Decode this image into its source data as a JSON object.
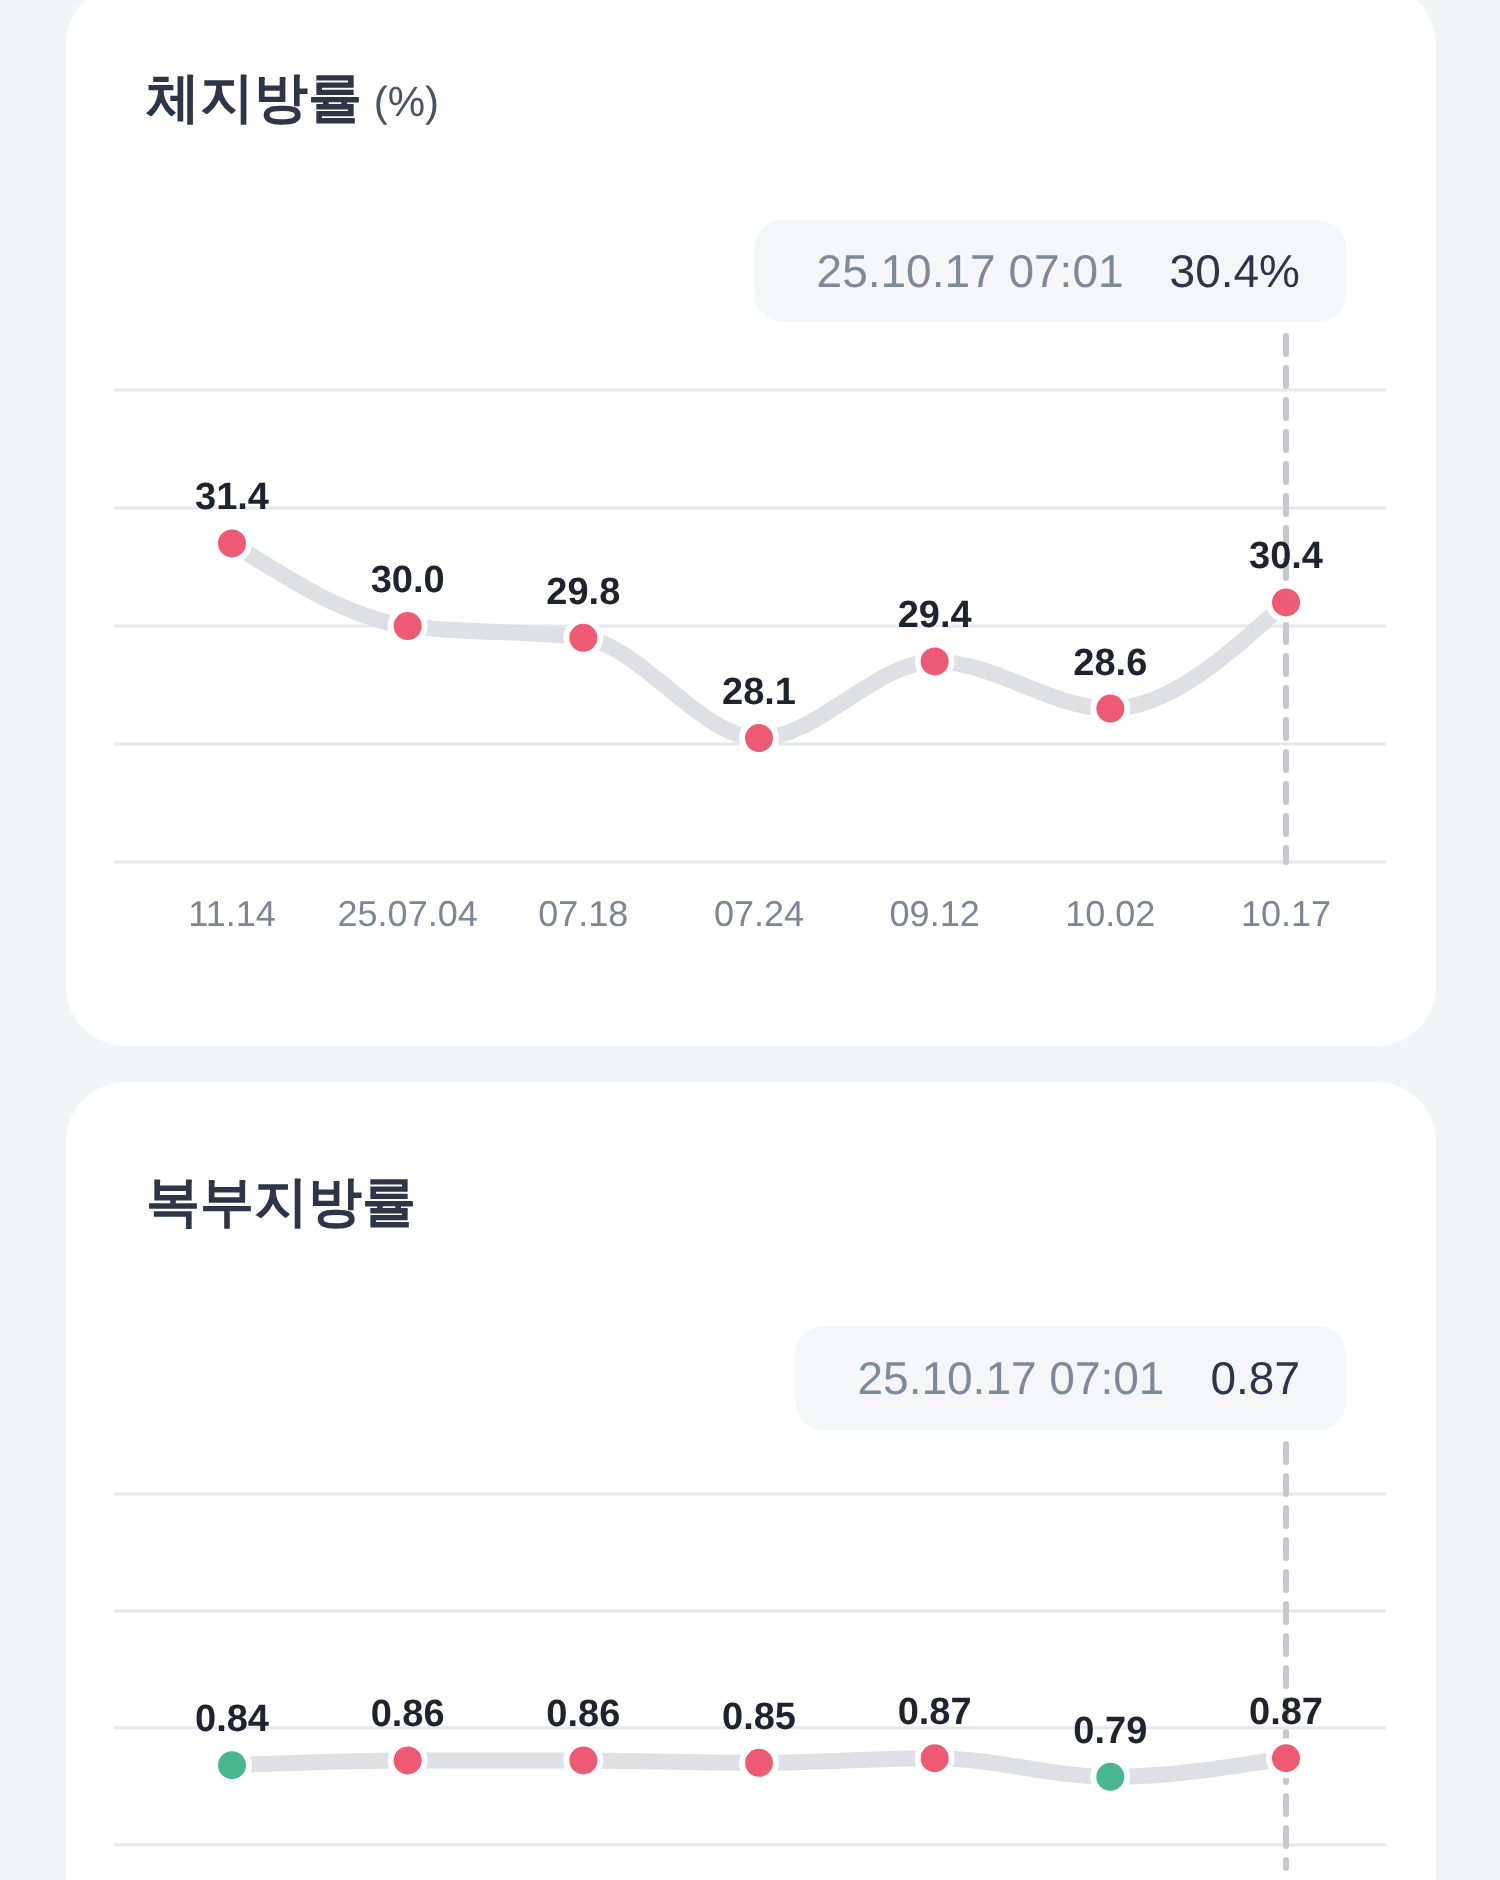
{
  "chart_data": [
    {
      "type": "line",
      "title": "**체지방률** (%)",
      "categories": [
        "11.14",
        "25.07.04",
        "07.18",
        "07.24",
        "09.12",
        "10.02",
        "10.17"
      ],
      "series": [
        {
          "color": "#dde0e4",
          "colors": [
            "#ee5a73",
            "#ee5a73",
            "#ee5a73",
            "#ee5a73",
            "#ee5a73",
            "#ee5a73",
            "#ee5a73"
          ],
          "values": [
            31.4,
            30.0,
            29.8,
            28.1,
            29.4,
            28.6,
            30.4
          ],
          "value_labels": [
            "31.4",
            "30.0",
            "29.8",
            "28.1",
            "29.4",
            "28.6",
            "30.4"
          ]
        }
      ],
      "ylim": [
        26,
        34
      ],
      "yticks": [
        {
          "value": 26,
          "label": null
        },
        {
          "value": 28,
          "label": null
        },
        {
          "value": 30,
          "label": null
        },
        {
          "value": 32,
          "label": null
        },
        {
          "value": 34,
          "label": null
        }
      ],
      "grid": "y",
      "tick_labels": "x",
      "marker": "circle",
      "ref_lines": [
        {
          "axis": "x",
          "value": "10.17",
          "color": "#c5c9cf",
          "line_style": "dashed"
        }
      ],
      "annotations": [
        "25.10.17 07:01",
        "30.4%"
      ]
    },
    {
      "type": "line",
      "title": "복부지방률",
      "categories": [
        null,
        null,
        null,
        null,
        null,
        null,
        null
      ],
      "series": [
        {
          "color": "#dde0e4",
          "colors": [
            "#46b78f",
            "#ee5a73",
            "#ee5a73",
            "#ee5a73",
            "#ee5a73",
            "#46b78f",
            "#ee5a73"
          ],
          "values": [
            0.84,
            0.86,
            0.86,
            0.85,
            0.87,
            0.79,
            0.87
          ],
          "value_labels": [
            "0.84",
            "0.86",
            "0.86",
            "0.85",
            "0.87",
            "0.79",
            "0.87"
          ]
        }
      ],
      "ylim": [
        0.4,
        2.0
      ],
      "yticks": [
        {
          "value": 0.5,
          "label": null
        },
        {
          "value": 1.0,
          "label": null
        },
        {
          "value": 1.5,
          "label": null
        },
        {
          "value": 2.0,
          "label": null
        }
      ],
      "grid": "y",
      "tick_labels": false,
      "marker": "circle",
      "annotations": [
        "25.10.17 07:01",
        "0.87"
      ]
    }
  ]
}
